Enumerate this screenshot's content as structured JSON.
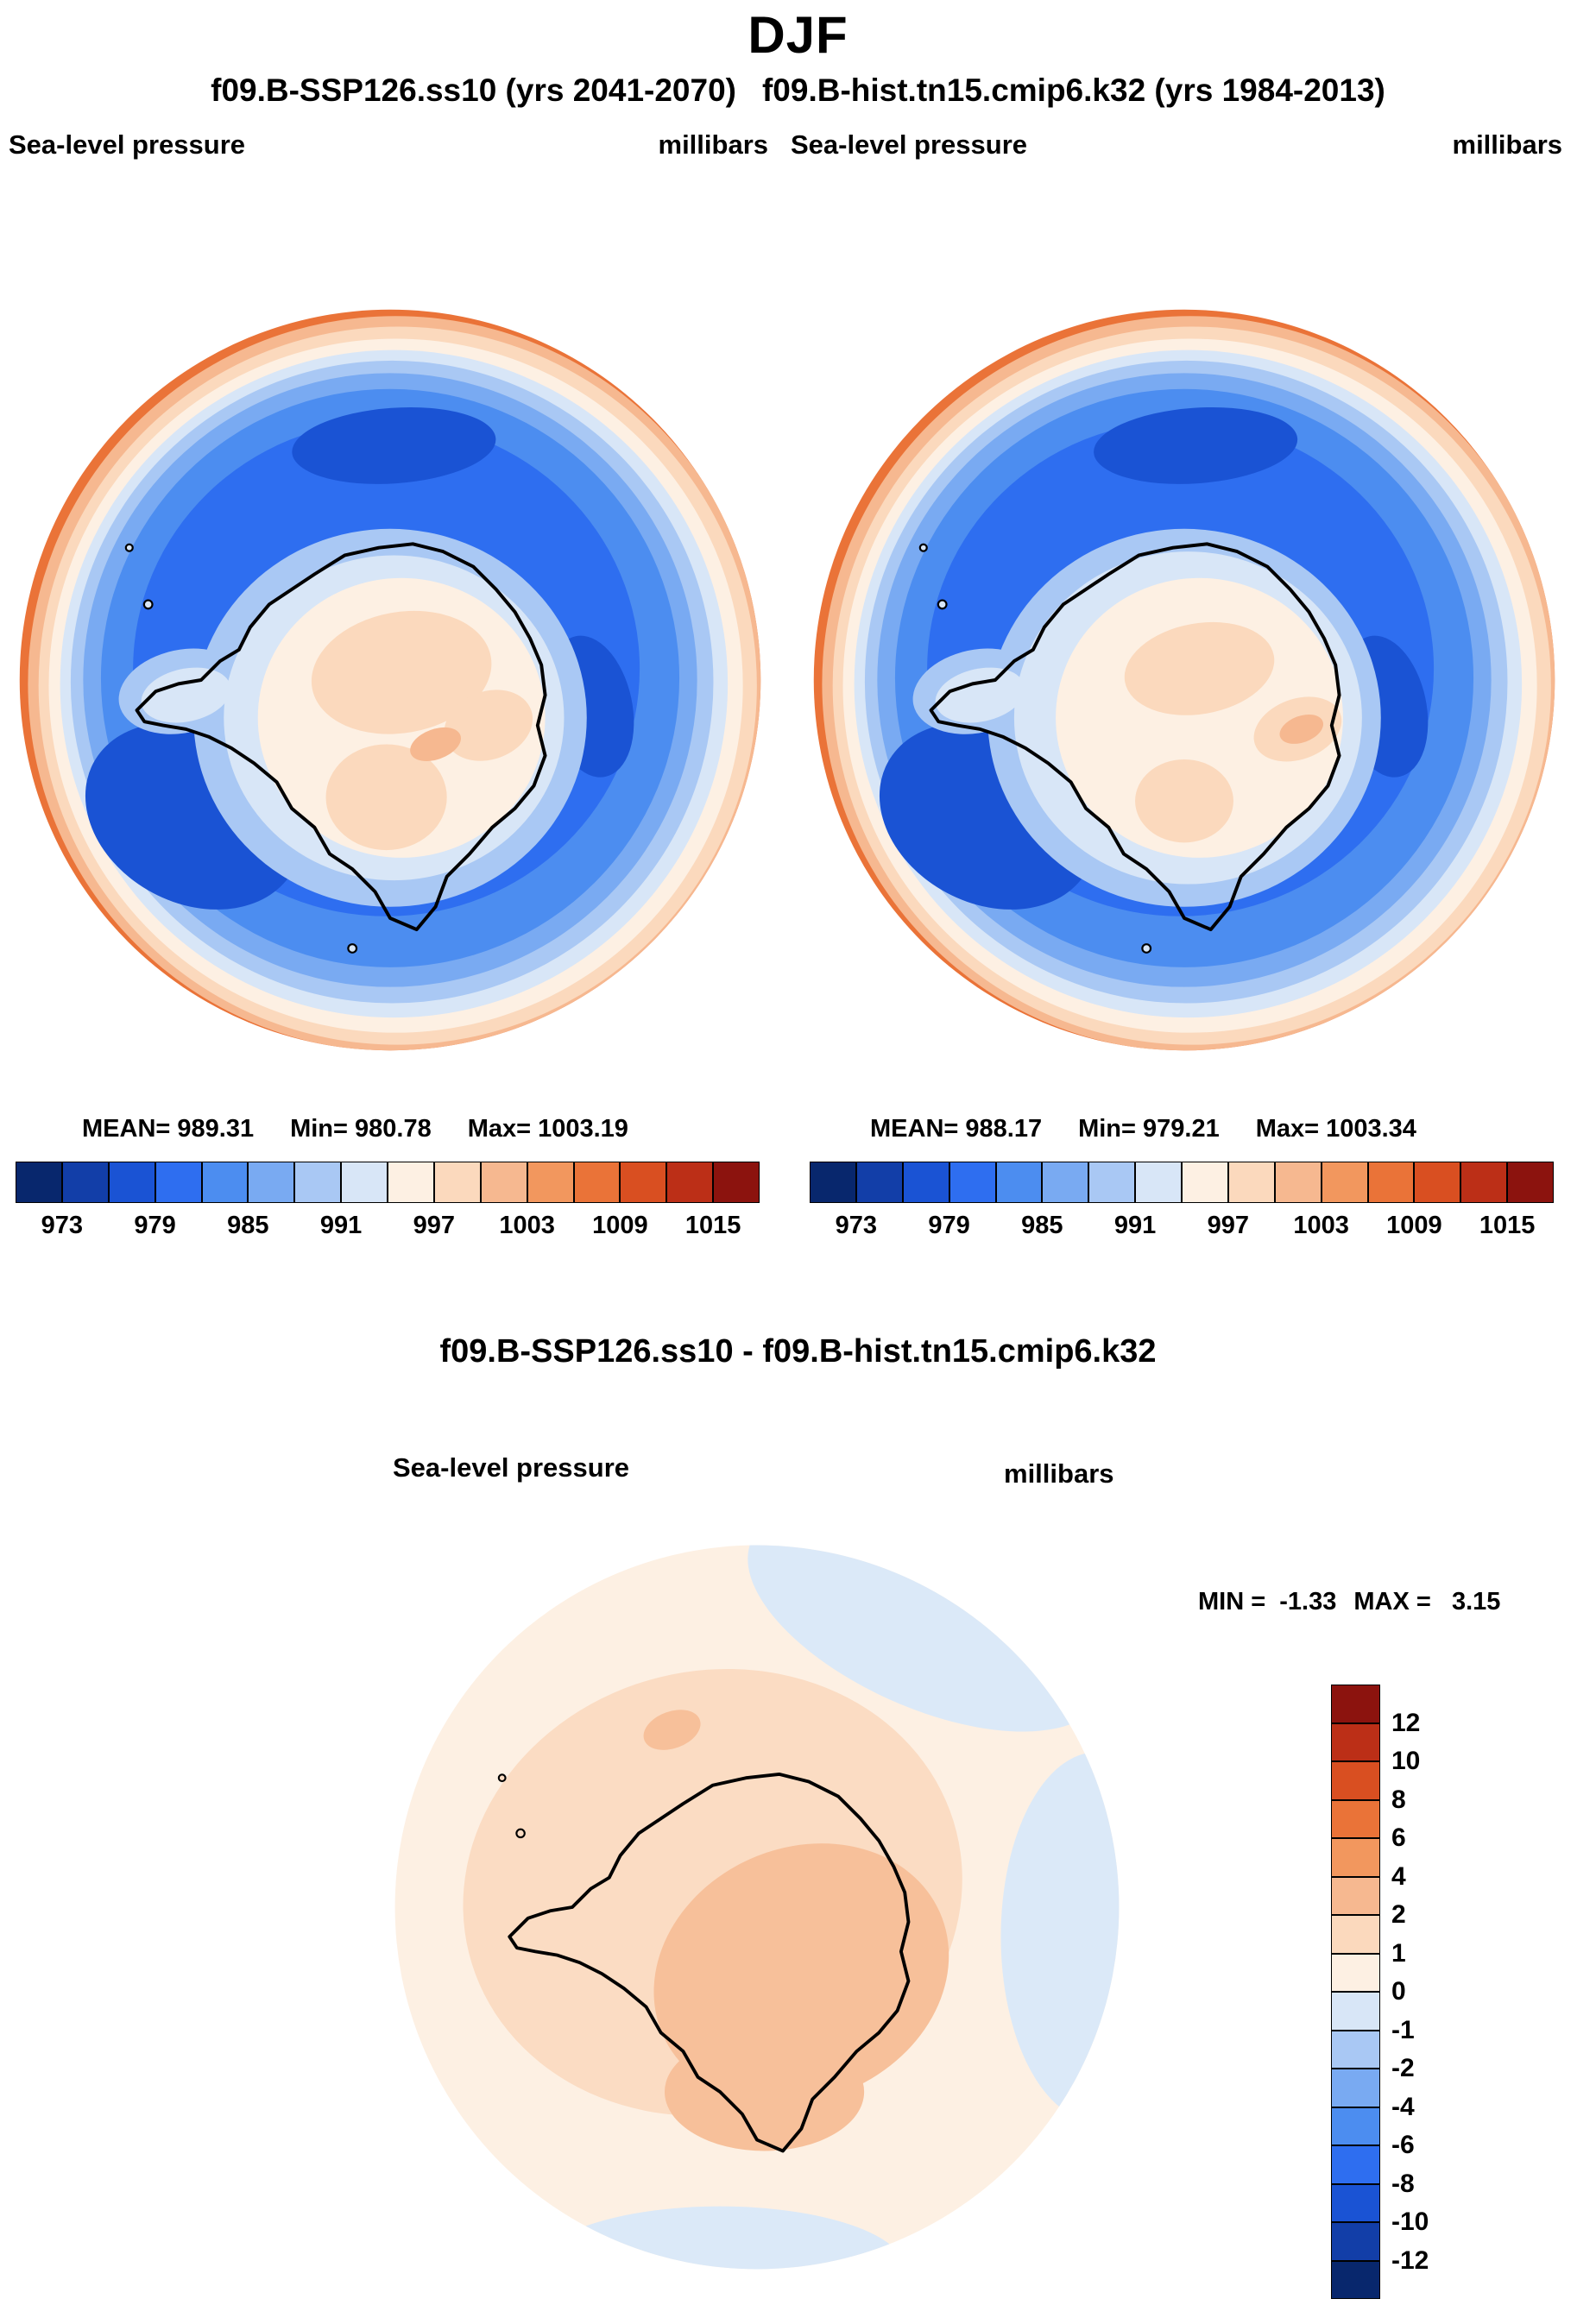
{
  "title": "DJF",
  "subtitle": {
    "left": "f09.B-SSP126.ss10 (yrs 2041-2070)",
    "right": "f09.B-hist.tn15.cmip6.k32 (yrs 1984-2013)"
  },
  "panels": {
    "left": {
      "field_label": "Sea-level pressure",
      "units_label": "millibars",
      "mean_text": "MEAN= 989.31",
      "min_text": "Min= 980.78",
      "max_text": "Max= 1003.19"
    },
    "right": {
      "field_label": "Sea-level pressure",
      "units_label": "millibars",
      "mean_text": "MEAN= 988.17",
      "min_text": "Min= 979.21",
      "max_text": "Max= 1003.34"
    }
  },
  "pressure_colorbar": {
    "colors": [
      "#08276d",
      "#123ea8",
      "#1a53d4",
      "#2e6ef0",
      "#4c8df0",
      "#79aaf2",
      "#a9c8f4",
      "#d8e6f7",
      "#fdf0e3",
      "#fbd9bd",
      "#f6b890",
      "#f2975e",
      "#ea7338",
      "#d94f21",
      "#bc2f17",
      "#8c130e"
    ],
    "tick_labels": [
      "973",
      "979",
      "985",
      "991",
      "997",
      "1003",
      "1009",
      "1015"
    ]
  },
  "diff": {
    "title": "f09.B-SSP126.ss10 - f09.B-hist.tn15.cmip6.k32",
    "field_label": "Sea-level pressure",
    "units_label": "millibars",
    "min_text": "MIN =  -1.33",
    "max_text": "MAX =   3.15",
    "colorbar": {
      "colors": [
        "#8c130e",
        "#bc2f17",
        "#d94f21",
        "#ea7338",
        "#f2975e",
        "#f6b890",
        "#fbd9bd",
        "#fdf0e3",
        "#d8e6f7",
        "#a9c8f4",
        "#79aaf2",
        "#4c8df0",
        "#2e6ef0",
        "#1a53d4",
        "#123ea8",
        "#08276d"
      ],
      "tick_labels": [
        "12",
        "10",
        "8",
        "6",
        "4",
        "2",
        "1",
        "0",
        "-1",
        "-2",
        "-4",
        "-6",
        "-8",
        "-10",
        "-12"
      ]
    }
  },
  "chart_data": {
    "type": "heatmap",
    "subtype": "filled-contour-map",
    "projection": "south-polar-stereographic",
    "season": "DJF",
    "variable": "Sea-level pressure",
    "units": "millibars",
    "panels": [
      {
        "name": "f09.B-SSP126.ss10",
        "years": "2041-2070",
        "mean": 989.31,
        "min": 980.78,
        "max": 1003.19,
        "contour_interval": 3,
        "colorbar_ticks": [
          973,
          979,
          985,
          991,
          997,
          1003,
          1009,
          1015
        ]
      },
      {
        "name": "f09.B-hist.tn15.cmip6.k32",
        "years": "1984-2013",
        "mean": 988.17,
        "min": 979.21,
        "max": 1003.34,
        "contour_interval": 3,
        "colorbar_ticks": [
          973,
          979,
          985,
          991,
          997,
          1003,
          1009,
          1015
        ]
      },
      {
        "name": "f09.B-SSP126.ss10 - f09.B-hist.tn15.cmip6.k32",
        "min": -1.33,
        "max": 3.15,
        "colorbar_ticks": [
          12,
          10,
          8,
          6,
          4,
          2,
          1,
          0,
          -1,
          -2,
          -4,
          -6,
          -8,
          -10,
          -12
        ]
      }
    ],
    "legend_position": "below for top panels, right for difference panel",
    "notes": "Blue-to-red discrete palette; maps show SLP over Antarctica with low-pressure circumpolar trough (blues) and higher pressure over the continent interior and map rim (creams/oranges); difference map mostly +1 to +4 mb (peach/orange) with small negative areas (pale blue) at the map edge."
  }
}
